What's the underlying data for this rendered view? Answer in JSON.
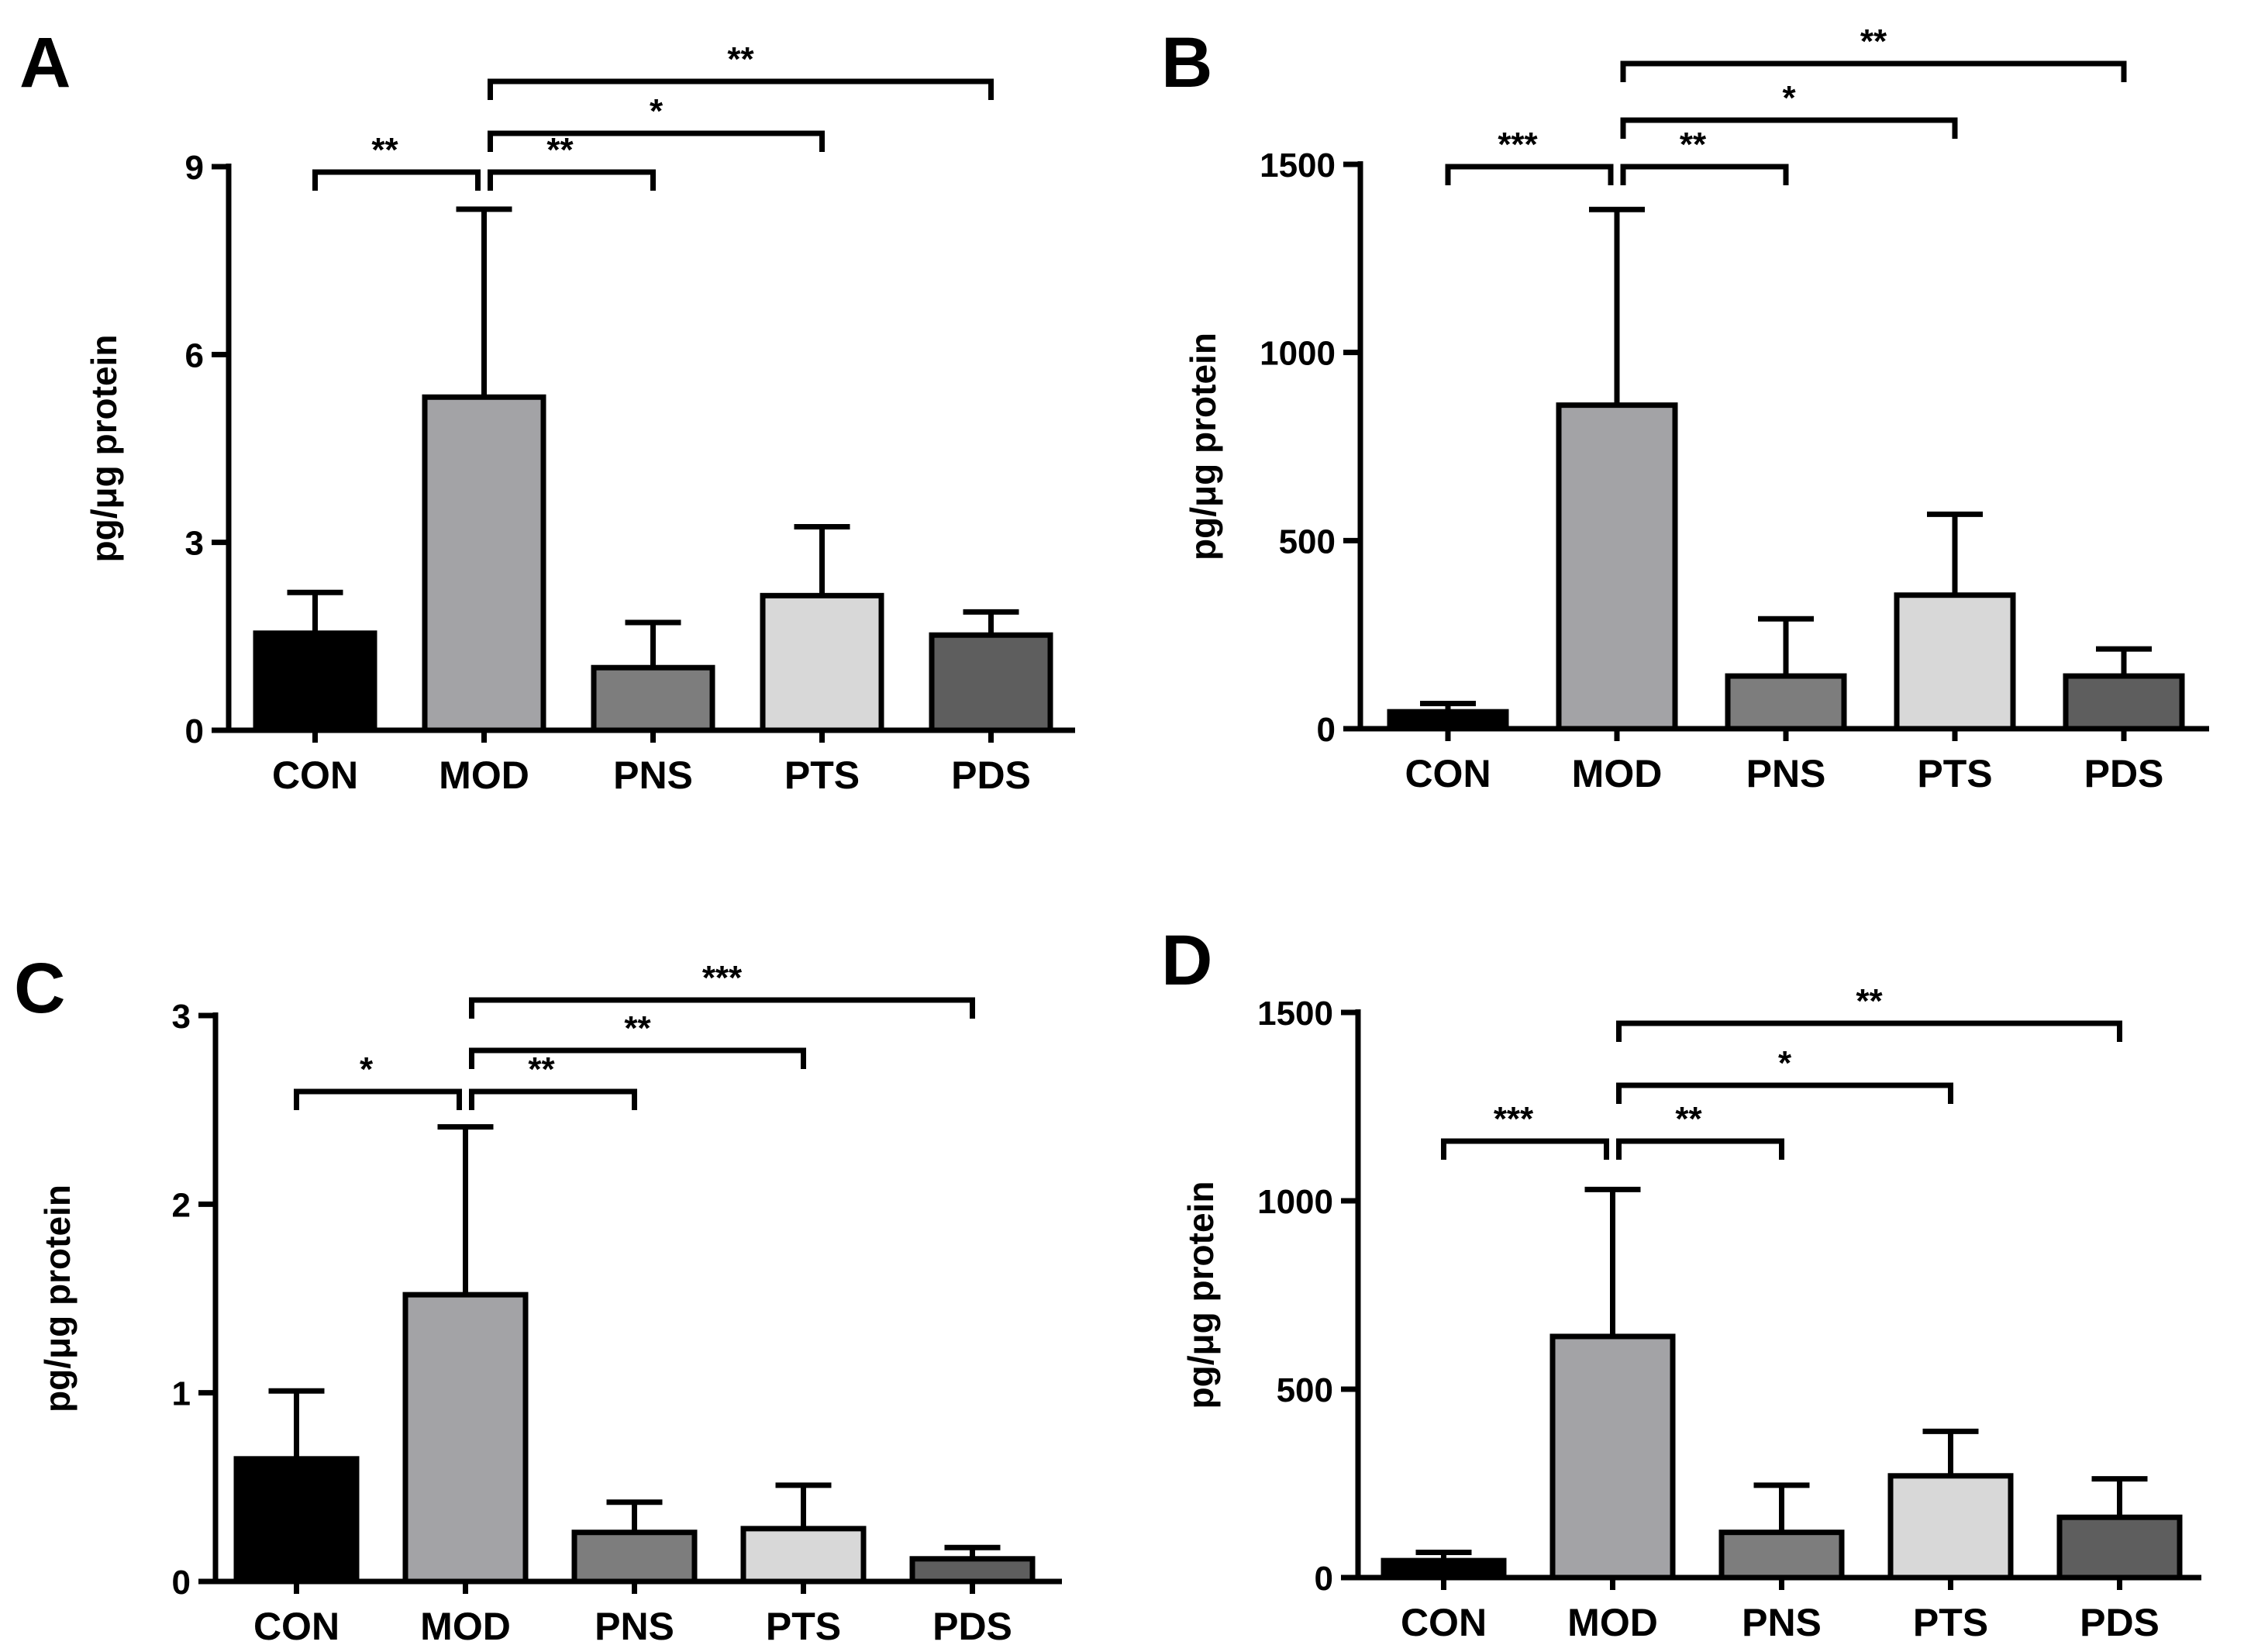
{
  "figure": {
    "colors": {
      "CON": "#000000",
      "MOD": "#a3a3a6",
      "PNS": "#7d7d7d",
      "PTS": "#d8d8d8",
      "PDS": "#5e5e5e",
      "stroke": "#000000"
    }
  },
  "chart_data": [
    {
      "panel": "A",
      "type": "bar",
      "categories": [
        "CON",
        "MOD",
        "PNS",
        "PTS",
        "PDS"
      ],
      "values": [
        1.55,
        5.32,
        1.0,
        2.15,
        1.52
      ],
      "errors": [
        0.65,
        3.0,
        0.72,
        1.1,
        0.37
      ],
      "ylabel": "pg/μg protein",
      "ylim": [
        0,
        9
      ],
      "yticks": [
        0,
        3,
        6,
        9
      ],
      "significance": [
        {
          "from": "CON",
          "to": "MOD",
          "label": "**",
          "level": 1
        },
        {
          "from": "MOD",
          "to": "PNS",
          "label": "**",
          "level": 1
        },
        {
          "from": "MOD",
          "to": "PTS",
          "label": "*",
          "level": 2
        },
        {
          "from": "MOD",
          "to": "PDS",
          "label": "**",
          "level": 3
        }
      ]
    },
    {
      "panel": "B",
      "type": "bar",
      "categories": [
        "CON",
        "MOD",
        "PNS",
        "PTS",
        "PDS"
      ],
      "values": [
        45,
        860,
        140,
        355,
        140
      ],
      "errors": [
        22,
        520,
        152,
        215,
        72
      ],
      "ylabel": "pg/μg protein",
      "ylim": [
        0,
        1500
      ],
      "yticks": [
        0,
        500,
        1000,
        1500
      ],
      "significance": [
        {
          "from": "CON",
          "to": "MOD",
          "label": "***",
          "level": 1
        },
        {
          "from": "MOD",
          "to": "PNS",
          "label": "**",
          "level": 1
        },
        {
          "from": "MOD",
          "to": "PTS",
          "label": "*",
          "level": 2
        },
        {
          "from": "MOD",
          "to": "PDS",
          "label": "**",
          "level": 3
        }
      ]
    },
    {
      "panel": "C",
      "type": "bar",
      "categories": [
        "CON",
        "MOD",
        "PNS",
        "PTS",
        "PDS"
      ],
      "values": [
        0.65,
        1.52,
        0.26,
        0.28,
        0.12
      ],
      "errors": [
        0.36,
        0.89,
        0.16,
        0.23,
        0.06
      ],
      "ylabel": "pg/μg protein",
      "ylim": [
        0,
        3
      ],
      "yticks": [
        0,
        1,
        2,
        3
      ],
      "significance": [
        {
          "from": "CON",
          "to": "MOD",
          "label": "*",
          "level": 1
        },
        {
          "from": "MOD",
          "to": "PNS",
          "label": "**",
          "level": 1
        },
        {
          "from": "MOD",
          "to": "PTS",
          "label": "**",
          "level": 2
        },
        {
          "from": "MOD",
          "to": "PDS",
          "label": "***",
          "level": 3
        }
      ]
    },
    {
      "panel": "D",
      "type": "bar",
      "categories": [
        "CON",
        "MOD",
        "PNS",
        "PTS",
        "PDS"
      ],
      "values": [
        45,
        640,
        120,
        270,
        160
      ],
      "errors": [
        22,
        390,
        125,
        118,
        102
      ],
      "ylabel": "pg/μg protein",
      "ylim": [
        0,
        1500
      ],
      "yticks": [
        0,
        500,
        1000,
        1500
      ],
      "significance": [
        {
          "from": "CON",
          "to": "MOD",
          "label": "***",
          "level": 1
        },
        {
          "from": "MOD",
          "to": "PNS",
          "label": "**",
          "level": 1
        },
        {
          "from": "MOD",
          "to": "PTS",
          "label": "*",
          "level": 2
        },
        {
          "from": "MOD",
          "to": "PDS",
          "label": "**",
          "level": 3
        }
      ]
    }
  ]
}
